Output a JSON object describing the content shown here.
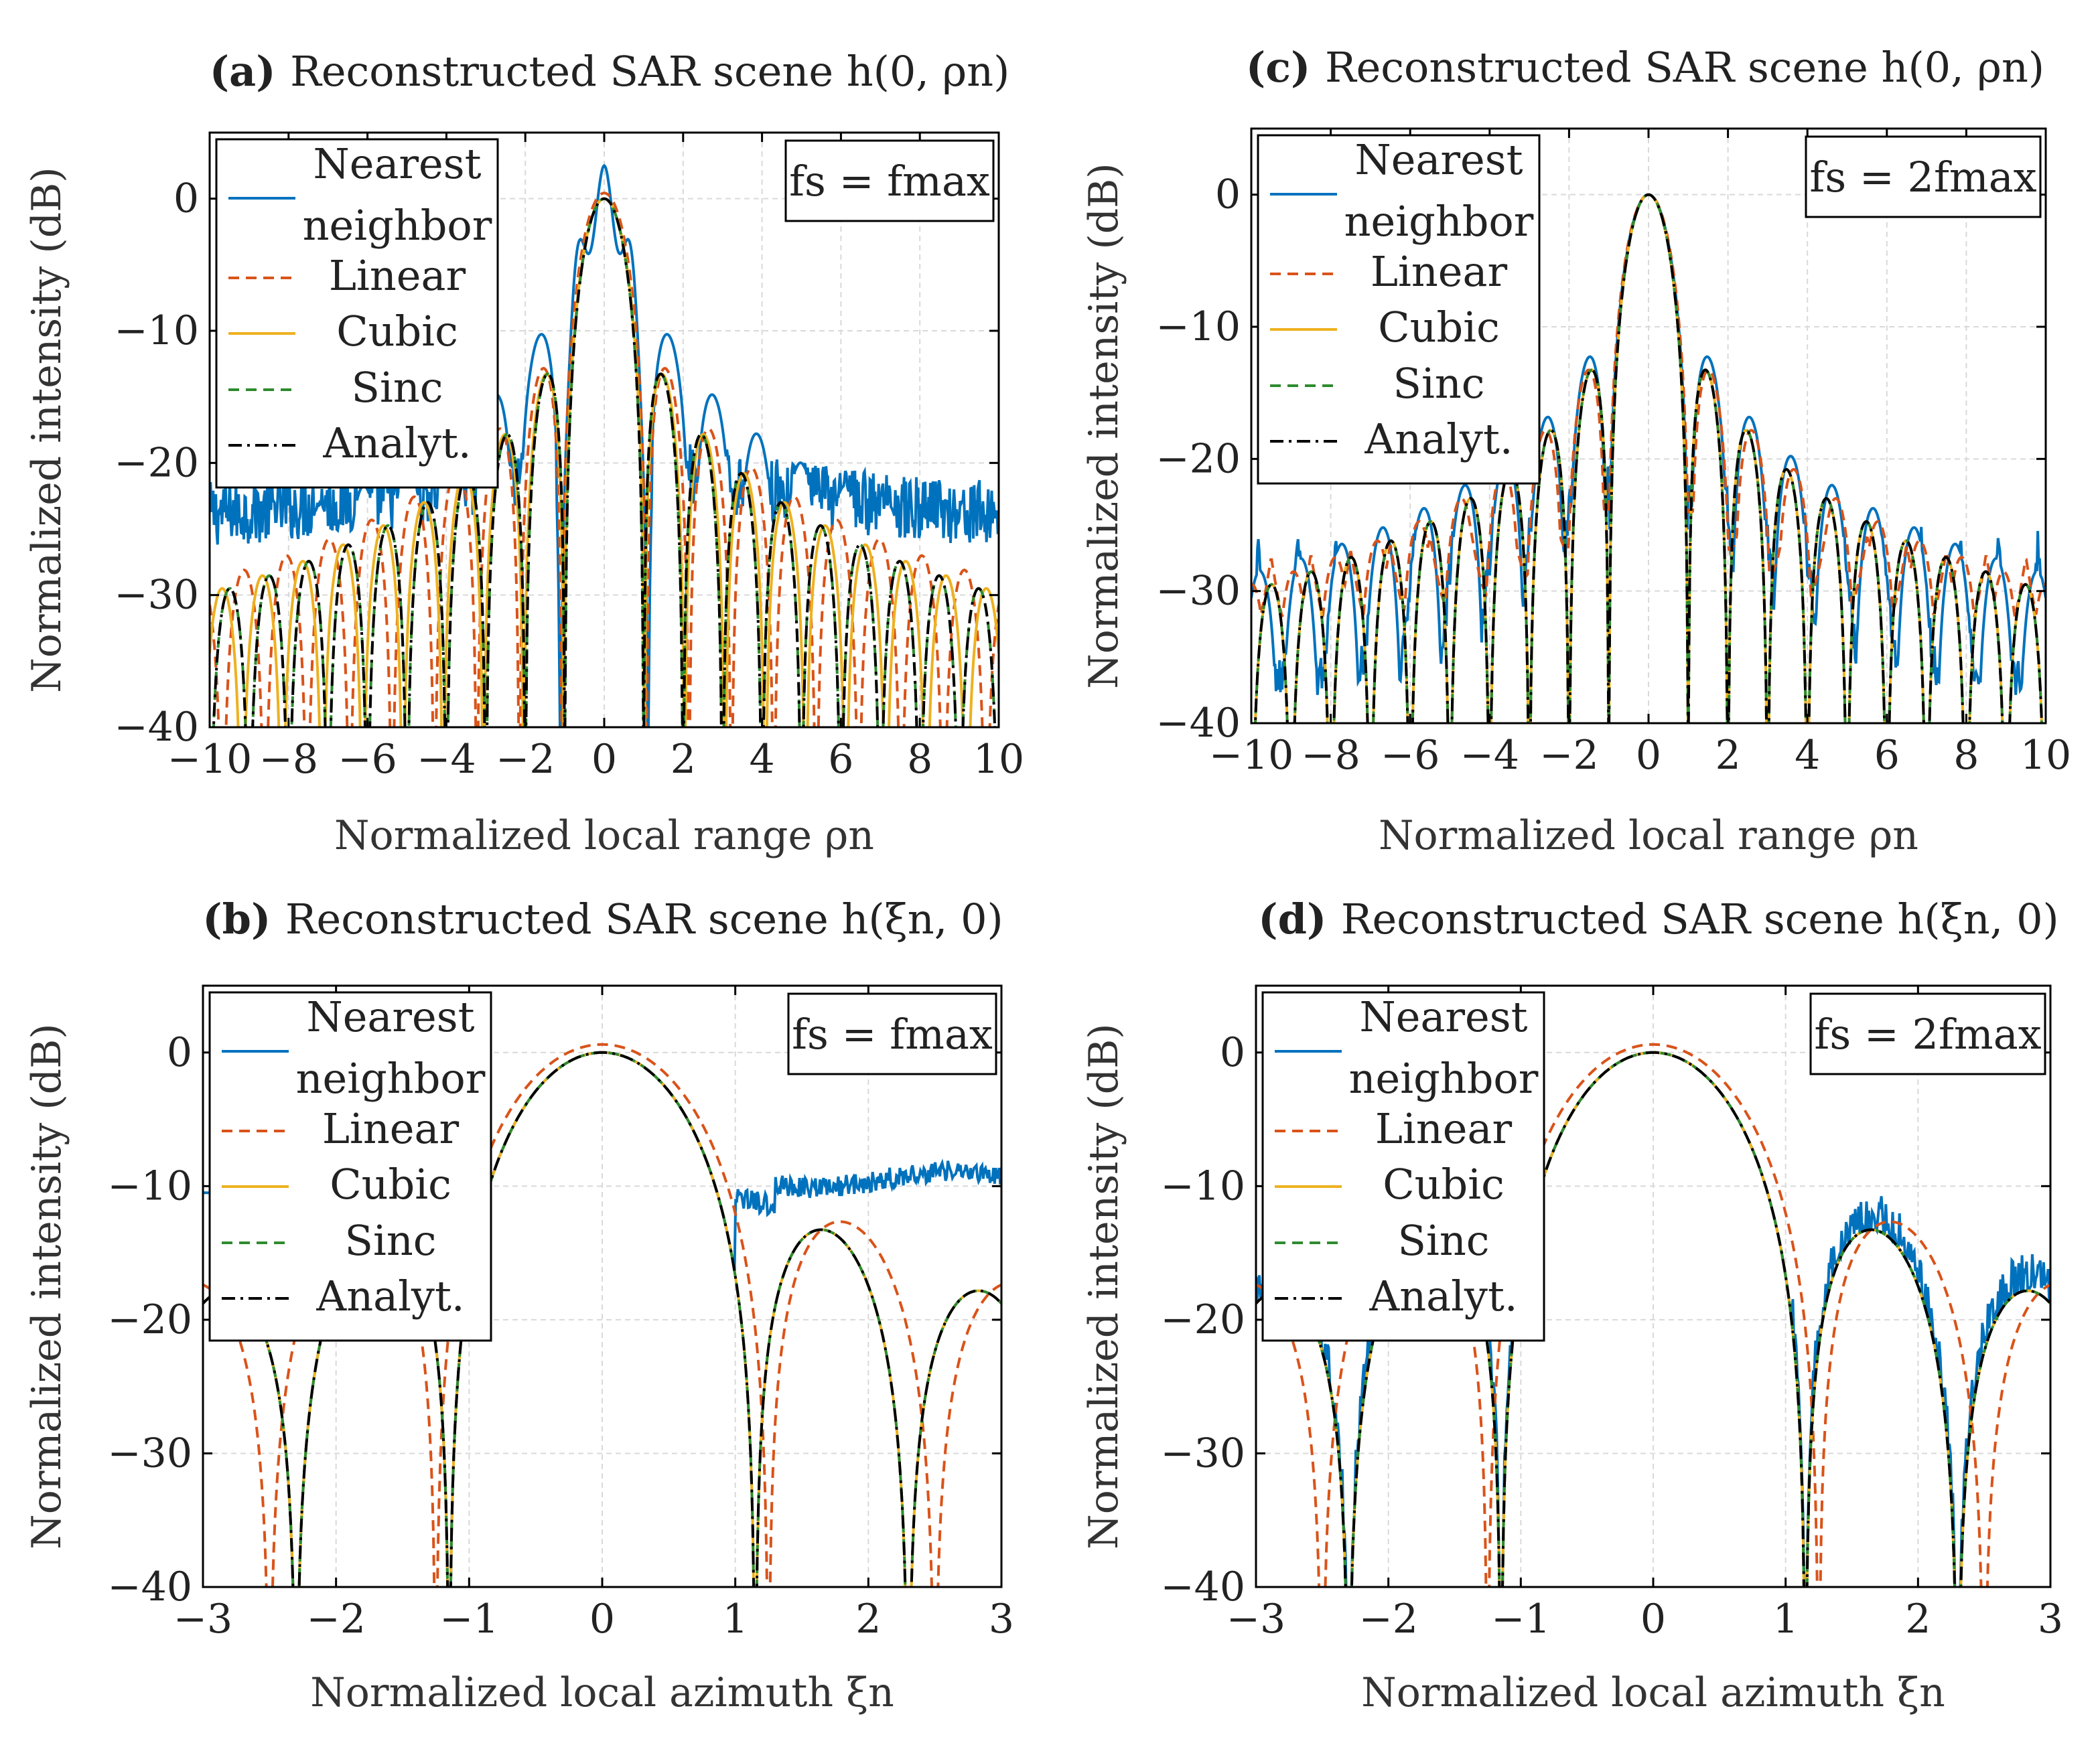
{
  "colors": {
    "nearest": "#0072BD",
    "linear": "#D95319",
    "cubic": "#EDB120",
    "sinc": "#2E8B2E",
    "analyt": "#000000",
    "grid": "#D9D9D9",
    "frame": "#000000"
  },
  "legend_labels": [
    "Nearest neighbor",
    "Linear",
    "Cubic",
    "Sinc",
    "Analyt."
  ],
  "chart_data": [
    {
      "id": "a",
      "type": "line",
      "panel_label": "(a)",
      "title": "Reconstructed SAR scene h(0, ρn)",
      "xlabel": "Normalized local range ρn",
      "ylabel": "Normalized intensity (dB)",
      "xlim": [
        -10,
        10
      ],
      "ylim": [
        -40,
        5
      ],
      "xticks": [
        -10,
        -8,
        -6,
        -4,
        -2,
        0,
        2,
        4,
        6,
        8,
        10
      ],
      "yticks": [
        0,
        -10,
        -20,
        -30,
        -40
      ],
      "annotation": "fs = fmax",
      "axis": "range",
      "fs_ratio": 1,
      "legend_position": "top-left",
      "grid": true,
      "series": [
        {
          "name": "Nearest neighbor",
          "style": "solid",
          "model": "range_nearest",
          "level_db": -25,
          "jitter_db": 2.5
        },
        {
          "name": "Linear",
          "style": "dashed",
          "model": "range_linear",
          "level_db": -22,
          "jitter_db": 0
        },
        {
          "name": "Cubic",
          "style": "solid",
          "model": "range_cubic",
          "level_db": -20,
          "jitter_db": 0
        },
        {
          "name": "Sinc",
          "style": "dashed",
          "model": "range_sinc",
          "level_db": 0,
          "jitter_db": 0
        },
        {
          "name": "Analyt.",
          "style": "dashdot",
          "model": "range_sinc",
          "level_db": 0,
          "jitter_db": 0
        }
      ]
    },
    {
      "id": "c",
      "type": "line",
      "panel_label": "(c)",
      "title": "Reconstructed SAR scene h(0, ρn)",
      "xlabel": "Normalized local range ρn",
      "ylabel": "Normalized intensity (dB)",
      "xlim": [
        -10,
        10
      ],
      "ylim": [
        -40,
        5
      ],
      "xticks": [
        -10,
        -8,
        -6,
        -4,
        -2,
        0,
        2,
        4,
        6,
        8,
        10
      ],
      "yticks": [
        0,
        -10,
        -20,
        -30,
        -40
      ],
      "annotation": "fs = 2fmax",
      "axis": "range",
      "fs_ratio": 2,
      "legend_position": "top-left",
      "grid": true,
      "series": [
        {
          "name": "Nearest neighbor",
          "style": "solid",
          "model": "range_nearest2",
          "level_db": -27,
          "jitter_db": 1.5
        },
        {
          "name": "Linear",
          "style": "dashed",
          "model": "range_linear2",
          "level_db": -25,
          "jitter_db": 0
        },
        {
          "name": "Cubic",
          "style": "solid",
          "model": "range_sinc",
          "level_db": 0,
          "jitter_db": 0
        },
        {
          "name": "Sinc",
          "style": "dashed",
          "model": "range_sinc",
          "level_db": 0,
          "jitter_db": 0
        },
        {
          "name": "Analyt.",
          "style": "dashdot",
          "model": "range_sinc",
          "level_db": 0,
          "jitter_db": 0
        }
      ]
    },
    {
      "id": "b",
      "type": "line",
      "panel_label": "(b)",
      "title": "Reconstructed SAR scene h(ξn, 0)",
      "xlabel": "Normalized local azimuth ξn",
      "ylabel": "Normalized intensity (dB)",
      "xlim": [
        -3,
        3
      ],
      "ylim": [
        -40,
        5
      ],
      "xticks": [
        -3,
        -2,
        -1,
        0,
        1,
        2,
        3
      ],
      "yticks": [
        0,
        -10,
        -20,
        -30,
        -40
      ],
      "annotation": "fs = fmax",
      "axis": "azimuth",
      "fs_ratio": 1,
      "legend_position": "top-left",
      "grid": true,
      "series": [
        {
          "name": "Nearest neighbor",
          "style": "solid",
          "model": "az_nearest1",
          "level_db": -9.5,
          "jitter_db": 0.8
        },
        {
          "name": "Linear",
          "style": "dashed",
          "model": "az_linear",
          "level_db": 0,
          "jitter_db": 0
        },
        {
          "name": "Cubic",
          "style": "solid",
          "model": "az_sinc",
          "level_db": 0,
          "jitter_db": 0
        },
        {
          "name": "Sinc",
          "style": "dashed",
          "model": "az_sinc",
          "level_db": 0,
          "jitter_db": 0
        },
        {
          "name": "Analyt.",
          "style": "dashdot",
          "model": "az_sinc",
          "level_db": 0,
          "jitter_db": 0
        }
      ]
    },
    {
      "id": "d",
      "type": "line",
      "panel_label": "(d)",
      "title": "Reconstructed SAR scene h(ξn, 0)",
      "xlabel": "Normalized local azimuth ξn",
      "ylabel": "Normalized intensity (dB)",
      "xlim": [
        -3,
        3
      ],
      "ylim": [
        -40,
        5
      ],
      "xticks": [
        -3,
        -2,
        -1,
        0,
        1,
        2,
        3
      ],
      "yticks": [
        0,
        -10,
        -20,
        -30,
        -40
      ],
      "annotation": "fs = 2fmax",
      "axis": "azimuth",
      "fs_ratio": 2,
      "legend_position": "top-left",
      "grid": true,
      "series": [
        {
          "name": "Nearest neighbor",
          "style": "solid",
          "model": "az_nearest2",
          "level_db": -21,
          "jitter_db": 1.8
        },
        {
          "name": "Linear",
          "style": "dashed",
          "model": "az_linear",
          "level_db": 0,
          "jitter_db": 0
        },
        {
          "name": "Cubic",
          "style": "solid",
          "model": "az_sinc",
          "level_db": 0,
          "jitter_db": 0
        },
        {
          "name": "Sinc",
          "style": "dashed",
          "model": "az_sinc",
          "level_db": 0,
          "jitter_db": 0
        },
        {
          "name": "Analyt.",
          "style": "dashdot",
          "model": "az_sinc",
          "level_db": 0,
          "jitter_db": 0
        }
      ]
    }
  ]
}
